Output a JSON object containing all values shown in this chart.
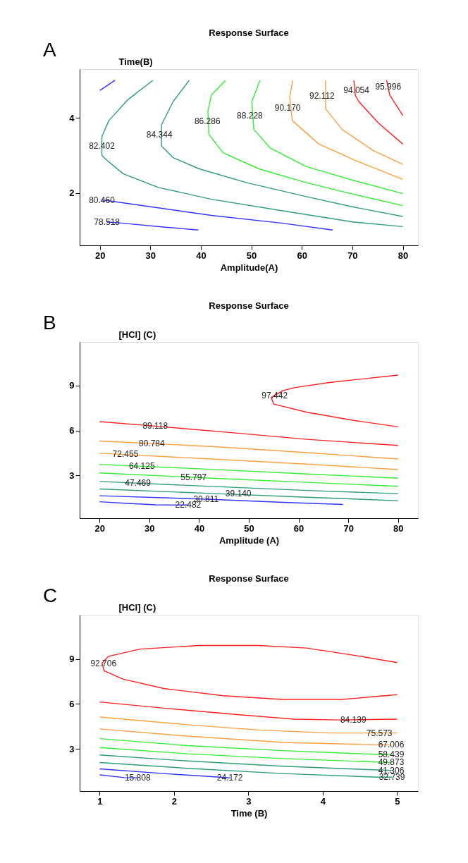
{
  "chart_data": [
    {
      "type": "line",
      "title": "Response Surface",
      "xlabel": "Amplitude(A)",
      "ylabel": "Time(B)",
      "xlim": [
        16,
        83
      ],
      "ylim": [
        0.6,
        5.3
      ],
      "xticks": [
        20,
        30,
        40,
        50,
        60,
        70,
        80
      ],
      "yticks": [
        2,
        4
      ],
      "grid": false,
      "legend": false,
      "series": [
        {
          "color": "#3333ff",
          "x": [
            20,
            23.0
          ],
          "values": [
            4.73,
            5.0
          ]
        },
        {
          "color": "#2e9e6e",
          "x": [
            30.5,
            25.6,
            21.8,
            20.4,
            20.4,
            21.3,
            24.6,
            31.7,
            42.1,
            56.2,
            70.3,
            80
          ],
          "values": [
            5.0,
            4.49,
            3.93,
            3.5,
            3.0,
            2.88,
            2.51,
            2.14,
            1.83,
            1.52,
            1.22,
            1.1
          ]
        },
        {
          "color": "#2e9e6e",
          "x": [
            37.7,
            34.5,
            32.2,
            32.2,
            34.5,
            39.7,
            49.1,
            60.9,
            70.3,
            80
          ],
          "values": [
            5.0,
            4.43,
            3.81,
            3.25,
            2.94,
            2.64,
            2.27,
            1.9,
            1.62,
            1.37
          ]
        },
        {
          "color": "#33ee33",
          "x": [
            44.9,
            42.1,
            41.4,
            41.6,
            44.4,
            51.5,
            60.9,
            70.3,
            80
          ],
          "values": [
            5.0,
            4.61,
            4.18,
            3.56,
            3.07,
            2.64,
            2.27,
            1.96,
            1.66
          ]
        },
        {
          "color": "#33ee33",
          "x": [
            51.7,
            50.1,
            50.5,
            53.8,
            60.9,
            70.3,
            80
          ],
          "values": [
            5.0,
            4.43,
            3.69,
            3.19,
            2.7,
            2.33,
            1.98
          ]
        },
        {
          "color": "#ffa040",
          "x": [
            58.2,
            57.6,
            58.1,
            63.3,
            70.3,
            80
          ],
          "values": [
            5.0,
            4.55,
            3.93,
            3.31,
            2.88,
            2.36
          ]
        },
        {
          "color": "#ffa040",
          "x": [
            64.7,
            64.7,
            68.0,
            74.1,
            80
          ],
          "values": [
            5.0,
            4.24,
            3.69,
            3.13,
            2.76
          ]
        },
        {
          "color": "#ff2020",
          "x": [
            70.3,
            70.6,
            71.3,
            75.1,
            80
          ],
          "values": [
            5.0,
            4.6,
            4.43,
            3.87,
            3.3
          ]
        },
        {
          "color": "#ff2020",
          "x": [
            76.8,
            77.4,
            80
          ],
          "values": [
            5.0,
            4.61,
            4.06
          ]
        },
        {
          "color": "#3333ff",
          "x": [
            20.4,
            22.7,
            42.1,
            56.2,
            66.1
          ],
          "values": [
            1.81,
            1.77,
            1.4,
            1.19,
            1.01
          ]
        },
        {
          "color": "#3333ff",
          "x": [
            21.4,
            23.9,
            32.6,
            39.5
          ],
          "values": [
            1.22,
            1.2,
            1.09,
            1.01
          ]
        }
      ],
      "annotations": [
        "A",
        {
          "text": "82.402",
          "x": 20.4,
          "y": 3.25
        },
        {
          "text": "84.344",
          "x": 31.8,
          "y": 3.56
        },
        {
          "text": "86.286",
          "x": 41.3,
          "y": 3.9
        },
        {
          "text": "88.228",
          "x": 49.7,
          "y": 4.06
        },
        {
          "text": "90.170",
          "x": 57.2,
          "y": 4.27
        },
        {
          "text": "92.112",
          "x": 64.0,
          "y": 4.58
        },
        {
          "text": "94.054",
          "x": 70.8,
          "y": 4.73
        },
        {
          "text": "95.996",
          "x": 77.1,
          "y": 4.83
        },
        {
          "text": "80.460",
          "x": 20.4,
          "y": 1.81
        },
        {
          "text": "78.518",
          "x": 21.4,
          "y": 1.22
        }
      ]
    },
    {
      "type": "line",
      "title": "Response Surface",
      "xlabel": "Amplitude (A)",
      "ylabel": "[HCl] (C)",
      "xlim": [
        16,
        84
      ],
      "ylim": [
        0.15,
        11.9
      ],
      "xticks": [
        20,
        30,
        40,
        50,
        60,
        70,
        80
      ],
      "yticks": [
        3,
        6,
        9
      ],
      "grid": false,
      "legend": false,
      "series": [
        {
          "color": "#ff2020",
          "x": [
            80,
            66.5,
            59.3,
            56.9,
            54.5,
            55.0,
            61.7,
            71.3,
            80
          ],
          "values": [
            9.69,
            9.21,
            8.86,
            8.66,
            8.2,
            7.76,
            7.21,
            6.66,
            6.24
          ]
        },
        {
          "color": "#ff2020",
          "x": [
            20,
            32.9,
            47.3,
            61.7,
            80
          ],
          "values": [
            6.59,
            6.24,
            5.83,
            5.41,
            5.0
          ]
        },
        {
          "color": "#ffa040",
          "x": [
            20,
            42.5,
            61.7,
            80
          ],
          "values": [
            5.3,
            4.93,
            4.52,
            4.1
          ]
        },
        {
          "color": "#ffa040",
          "x": [
            20,
            42.5,
            61.7,
            80
          ],
          "values": [
            4.48,
            4.1,
            3.76,
            3.39
          ]
        },
        {
          "color": "#33ee33",
          "x": [
            20,
            42.5,
            61.7,
            80
          ],
          "values": [
            3.74,
            3.41,
            3.1,
            2.82
          ]
        },
        {
          "color": "#33ee33",
          "x": [
            20,
            42.5,
            61.7,
            80
          ],
          "values": [
            3.17,
            2.82,
            2.54,
            2.28
          ]
        },
        {
          "color": "#2e9e6e",
          "x": [
            20,
            42.5,
            61.7,
            80
          ],
          "values": [
            2.6,
            2.27,
            2.0,
            1.79
          ]
        },
        {
          "color": "#2e9e6e",
          "x": [
            20,
            42.5,
            61.7,
            80
          ],
          "values": [
            2.1,
            1.8,
            1.55,
            1.32
          ]
        },
        {
          "color": "#3333ff",
          "x": [
            20,
            42.5,
            56.9,
            68.9
          ],
          "values": [
            1.65,
            1.41,
            1.21,
            1.07
          ]
        },
        {
          "color": "#3333ff",
          "x": [
            20,
            25.7,
            31.4,
            37.8
          ],
          "values": [
            1.25,
            1.14,
            1.04,
            1.03
          ]
        }
      ],
      "annotations": [
        "B",
        {
          "text": "97.442",
          "x": 55.2,
          "y": 8.31
        },
        {
          "text": "89.118",
          "x": 31.2,
          "y": 6.3
        },
        {
          "text": "80.784",
          "x": 30.5,
          "y": 5.14
        },
        {
          "text": "72.455",
          "x": 25.2,
          "y": 4.41
        },
        {
          "text": "64.125",
          "x": 28.5,
          "y": 3.65
        },
        {
          "text": "55.797",
          "x": 38.9,
          "y": 2.86
        },
        {
          "text": "47.469",
          "x": 27.7,
          "y": 2.52
        },
        {
          "text": "39.140",
          "x": 47.9,
          "y": 1.79
        },
        {
          "text": "30.811",
          "x": 41.4,
          "y": 1.41
        },
        {
          "text": "22.482",
          "x": 37.8,
          "y": 1.03
        }
      ]
    },
    {
      "type": "line",
      "title": "Response Surface",
      "xlabel": "Time (B)",
      "ylabel": "[HCl] (C)",
      "xlim": [
        0.73,
        5.28
      ],
      "ylim": [
        0.18,
        11.95
      ],
      "xticks": [
        1,
        2,
        3,
        4,
        5
      ],
      "yticks": [
        3,
        6,
        9
      ],
      "grid": false,
      "legend": false,
      "series": [
        {
          "color": "#ff2020",
          "x": [
            5,
            4.42,
            3.78,
            3.14,
            2.34,
            1.54,
            1.12,
            1.03,
            1.06,
            1.31,
            1.86,
            2.66,
            3.46,
            4.26,
            5
          ],
          "values": [
            8.76,
            9.25,
            9.73,
            9.9,
            9.9,
            9.66,
            9.18,
            8.72,
            8.21,
            7.66,
            7.03,
            6.55,
            6.3,
            6.3,
            6.62
          ]
        },
        {
          "color": "#ff2020",
          "x": [
            1,
            1.86,
            2.82,
            3.62,
            4.23,
            5
          ],
          "values": [
            6.13,
            5.72,
            5.3,
            4.98,
            4.93,
            4.98
          ]
        },
        {
          "color": "#ffa040",
          "x": [
            1,
            2.18,
            3.14,
            4.1,
            5
          ],
          "values": [
            5.12,
            4.61,
            4.26,
            4.06,
            4.06
          ]
        },
        {
          "color": "#ffa040",
          "x": [
            1,
            2.18,
            3.46,
            4.74,
            4.92
          ],
          "values": [
            4.33,
            3.85,
            3.43,
            3.27,
            3.27
          ]
        },
        {
          "color": "#33ee33",
          "x": [
            1,
            2.18,
            3.46,
            4.74,
            4.92
          ],
          "values": [
            3.68,
            3.22,
            2.88,
            2.63,
            2.63
          ]
        },
        {
          "color": "#33ee33",
          "x": [
            1,
            2.18,
            3.46,
            4.74,
            4.92
          ],
          "values": [
            3.09,
            2.67,
            2.35,
            2.12,
            2.09
          ]
        },
        {
          "color": "#2e9e6e",
          "x": [
            1,
            2.18,
            3.46,
            4.74,
            4.92
          ],
          "values": [
            2.59,
            2.19,
            1.84,
            1.59,
            1.56
          ]
        },
        {
          "color": "#2e9e6e",
          "x": [
            1,
            2.18,
            3.46,
            4.74,
            4.93
          ],
          "values": [
            2.09,
            1.7,
            1.35,
            1.11,
            1.11
          ]
        },
        {
          "color": "#3333ff",
          "x": [
            1,
            1.86,
            2.58,
            2.75
          ],
          "values": [
            1.66,
            1.35,
            1.12,
            1.06
          ]
        },
        {
          "color": "#3333ff",
          "x": [
            1,
            1.33,
            1.51
          ],
          "values": [
            1.26,
            1.08,
            1.06
          ]
        }
      ],
      "annotations": [
        "C",
        {
          "text": "92.706",
          "x": 1.05,
          "y": 8.72
        },
        {
          "text": "84.139",
          "x": 4.41,
          "y": 4.93
        },
        {
          "text": "75.573",
          "x": 4.76,
          "y": 4.03
        },
        {
          "text": "67.006",
          "x": 4.92,
          "y": 3.27
        },
        {
          "text": "58.439",
          "x": 4.92,
          "y": 2.63
        },
        {
          "text": "49.873",
          "x": 4.92,
          "y": 2.09
        },
        {
          "text": "41.306",
          "x": 4.92,
          "y": 1.56
        },
        {
          "text": "32.739",
          "x": 4.93,
          "y": 1.11
        },
        {
          "text": "24.172",
          "x": 2.75,
          "y": 1.06
        },
        {
          "text": "15.808",
          "x": 1.51,
          "y": 1.06
        }
      ]
    }
  ]
}
